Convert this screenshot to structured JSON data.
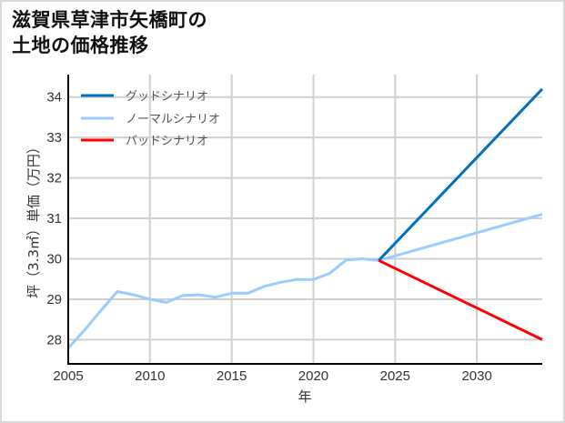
{
  "chart_data": {
    "type": "line",
    "title": "滋賀県草津市矢橋町の\n土地の価格推移",
    "title_lines": [
      "滋賀県草津市矢橋町の",
      "土地の価格推移"
    ],
    "xlabel": "年",
    "ylabel": "坪（3.3㎡）単価（万円）",
    "xlim": [
      2005,
      2034
    ],
    "ylim": [
      27.4,
      34.55
    ],
    "x_ticks": [
      2005,
      2010,
      2015,
      2020,
      2025,
      2030
    ],
    "y_ticks": [
      28,
      29,
      30,
      31,
      32,
      33,
      34
    ],
    "grid": true,
    "legend_position": "upper left",
    "series": [
      {
        "name": "グッドシナリオ",
        "color": "#0070c0",
        "x": [
          2024,
          2034
        ],
        "values": [
          29.96,
          34.2
        ]
      },
      {
        "name": "ノーマルシナリオ",
        "color": "#99ccff",
        "x": [
          2005,
          2006,
          2007,
          2008,
          2009,
          2010,
          2011,
          2012,
          2013,
          2014,
          2015,
          2016,
          2017,
          2018,
          2019,
          2020,
          2021,
          2022,
          2023,
          2024,
          2034
        ],
        "values": [
          27.79,
          28.24,
          28.72,
          29.19,
          29.11,
          29.0,
          28.92,
          29.09,
          29.11,
          29.05,
          29.15,
          29.15,
          29.32,
          29.42,
          29.49,
          29.49,
          29.64,
          29.97,
          30.0,
          29.96,
          31.1
        ]
      },
      {
        "name": "バッドシナリオ",
        "color": "#ff0000",
        "x": [
          2024,
          2034
        ],
        "values": [
          29.96,
          28.0
        ]
      }
    ]
  },
  "labels": {
    "title_line1": "滋賀県草津市矢橋町の",
    "title_line2": "土地の価格推移",
    "xlabel": "年",
    "ylabel": "坪（3.3㎡）単価（万円）",
    "legend": [
      "グッドシナリオ",
      "ノーマルシナリオ",
      "バッドシナリオ"
    ]
  }
}
